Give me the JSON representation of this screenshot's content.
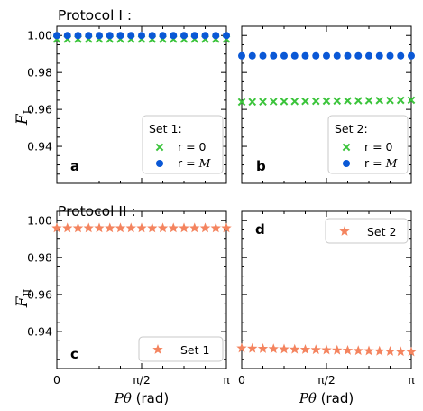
{
  "chart_data": [
    {
      "panel": "a",
      "type": "scatter",
      "group_label": "Protocol I :",
      "ylabel": "F_I",
      "ylim": [
        0.92,
        1.005
      ],
      "yticks": [
        0.94,
        0.96,
        0.98,
        1.0
      ],
      "ytick_labels": [
        "0.94",
        "0.96",
        "0.98",
        "1.00"
      ],
      "xlim": [
        0,
        3.14159
      ],
      "xlabel": "",
      "legend": {
        "title": "Set 1:",
        "placement": "lower-right"
      },
      "series": [
        {
          "name": "r = 0",
          "marker": "x",
          "color": "#3bc43b",
          "x_count": 17,
          "y": 0.998
        },
        {
          "name": "r = M",
          "marker": "circle",
          "color": "#0a58d6",
          "x_count": 17,
          "y": 1.0
        }
      ]
    },
    {
      "panel": "b",
      "type": "scatter",
      "ylim": [
        0.92,
        1.005
      ],
      "xlim": [
        0,
        3.14159
      ],
      "legend": {
        "title": "Set 2:",
        "placement": "lower-right"
      },
      "series": [
        {
          "name": "r = 0",
          "marker": "x",
          "color": "#3bc43b",
          "x_count": 17,
          "y_start": 0.964,
          "y_end": 0.965
        },
        {
          "name": "r = M",
          "marker": "circle",
          "color": "#0a58d6",
          "x_count": 17,
          "y": 0.989
        }
      ]
    },
    {
      "panel": "c",
      "type": "scatter",
      "group_label": "Protocol II :",
      "ylabel": "F_II",
      "ylim": [
        0.92,
        1.005
      ],
      "yticks": [
        0.94,
        0.96,
        0.98,
        1.0
      ],
      "ytick_labels": [
        "0.94",
        "0.96",
        "0.98",
        "1.00"
      ],
      "xlim": [
        0,
        3.14159
      ],
      "xticks": [
        0,
        1.5708,
        3.14159
      ],
      "xtick_labels": [
        "0",
        "π/2",
        "π"
      ],
      "xlabel": "Pθ (rad)",
      "legend": {
        "placement": "lower-right"
      },
      "series": [
        {
          "name": "Set 1",
          "marker": "star",
          "color": "#f4845f",
          "x_count": 17,
          "y": 0.996
        }
      ]
    },
    {
      "panel": "d",
      "type": "scatter",
      "ylim": [
        0.92,
        1.005
      ],
      "xlim": [
        0,
        3.14159
      ],
      "xticks": [
        0,
        1.5708,
        3.14159
      ],
      "xtick_labels": [
        "0",
        "π/2",
        "π"
      ],
      "xlabel": "Pθ (rad)",
      "legend": {
        "placement": "upper-right"
      },
      "series": [
        {
          "name": "Set 2",
          "marker": "star",
          "color": "#f4845f",
          "x_count": 17,
          "y_start": 0.931,
          "y_end": 0.929
        }
      ]
    }
  ],
  "labels": {
    "protocol1": "Protocol I :",
    "protocol2": "Protocol II :",
    "ylabel_top_main": "F",
    "ylabel_top_sub": "I",
    "ylabel_bottom_main": "F",
    "ylabel_bottom_sub": "II",
    "xlabel_main": "Pθ",
    "xlabel_unit": " (rad)",
    "panel_a": "a",
    "panel_b": "b",
    "panel_c": "c",
    "panel_d": "d",
    "legend_a_title": "Set 1:",
    "legend_a_item1": "r = 0",
    "legend_a_item2_prefix": "r = ",
    "legend_a_item2_var": "M",
    "legend_b_title": "Set 2:",
    "legend_b_item1": "r = 0",
    "legend_b_item2_prefix": "r = ",
    "legend_b_item2_var": "M",
    "legend_c_item": "Set 1",
    "legend_d_item": "Set 2"
  },
  "colors": {
    "green": "#3bc43b",
    "blue": "#0a58d6",
    "orange": "#f4845f"
  }
}
